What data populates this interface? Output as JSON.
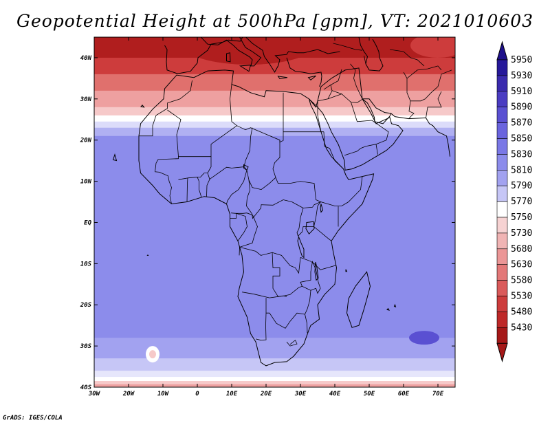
{
  "title": "Geopotential Height at 500hPa [gpm], VT: 2021010603",
  "credit": "GrADS: IGES/COLA",
  "map": {
    "projection": "lat-lon",
    "lon_range": [
      -30,
      75
    ],
    "lat_range": [
      -40,
      45
    ],
    "x_ticks": [
      {
        "lon": -30,
        "label": "30W"
      },
      {
        "lon": -20,
        "label": "20W"
      },
      {
        "lon": -10,
        "label": "10W"
      },
      {
        "lon": 0,
        "label": "0"
      },
      {
        "lon": 10,
        "label": "10E"
      },
      {
        "lon": 20,
        "label": "20E"
      },
      {
        "lon": 30,
        "label": "30E"
      },
      {
        "lon": 40,
        "label": "40E"
      },
      {
        "lon": 50,
        "label": "50E"
      },
      {
        "lon": 60,
        "label": "60E"
      },
      {
        "lon": 70,
        "label": "70E"
      }
    ],
    "y_ticks": [
      {
        "lat": 40,
        "label": "40N"
      },
      {
        "lat": 30,
        "label": "30N"
      },
      {
        "lat": 20,
        "label": "20N"
      },
      {
        "lat": 10,
        "label": "10N"
      },
      {
        "lat": 0,
        "label": "EQ"
      },
      {
        "lat": -10,
        "label": "10S"
      },
      {
        "lat": -20,
        "label": "20S"
      },
      {
        "lat": -30,
        "label": "30S"
      },
      {
        "lat": -40,
        "label": "40S"
      }
    ],
    "bands": [
      {
        "lat": 45,
        "color": "#b01e1e"
      },
      {
        "lat": 40,
        "color": "#cd3c3c"
      },
      {
        "lat": 36,
        "color": "#e0706d"
      },
      {
        "lat": 32,
        "color": "#eea0a0"
      },
      {
        "lat": 28,
        "color": "#f6c9c9"
      },
      {
        "lat": 26,
        "color": "#ffffff"
      },
      {
        "lat": 24.5,
        "color": "#dcdcfa"
      },
      {
        "lat": 23,
        "color": "#b0b0f2"
      },
      {
        "lat": 21,
        "color": "#8c8ceb"
      },
      {
        "lat": -28,
        "color": "#a2a2f0"
      },
      {
        "lat": -33,
        "color": "#c6c6f6"
      },
      {
        "lat": -36,
        "color": "#e6e6fb"
      },
      {
        "lat": -37.5,
        "color": "#ffffff"
      },
      {
        "lat": -38.5,
        "color": "#f6c9c9"
      },
      {
        "lat": -39.3,
        "color": "#eea0a0"
      },
      {
        "lat": -40,
        "color": "#eea0a0"
      }
    ]
  },
  "colorbar": {
    "levels": [
      {
        "label": "5950",
        "color": "#26189a"
      },
      {
        "label": "5930",
        "color": "#3a2aae"
      },
      {
        "label": "5910",
        "color": "#4a3cc2"
      },
      {
        "label": "5890",
        "color": "#5a50d2"
      },
      {
        "label": "5870",
        "color": "#6a64de"
      },
      {
        "label": "5850",
        "color": "#7a78e6"
      },
      {
        "label": "5830",
        "color": "#8c8ceb"
      },
      {
        "label": "5810",
        "color": "#a2a2f0"
      },
      {
        "label": "5790",
        "color": "#c6c6f6"
      },
      {
        "label": "5770",
        "color": "#ffffff"
      },
      {
        "label": "5750",
        "color": "#f6d2d2"
      },
      {
        "label": "5730",
        "color": "#f0b4b4"
      },
      {
        "label": "5680",
        "color": "#eb9696"
      },
      {
        "label": "5630",
        "color": "#e37878"
      },
      {
        "label": "5580",
        "color": "#da5a5a"
      },
      {
        "label": "5530",
        "color": "#cd3c3c"
      },
      {
        "label": "5480",
        "color": "#be2828"
      },
      {
        "label": "5430",
        "color": "#a51818"
      }
    ],
    "top_arrow_color": "#1e108a",
    "bottom_arrow_color": "#a51818"
  }
}
